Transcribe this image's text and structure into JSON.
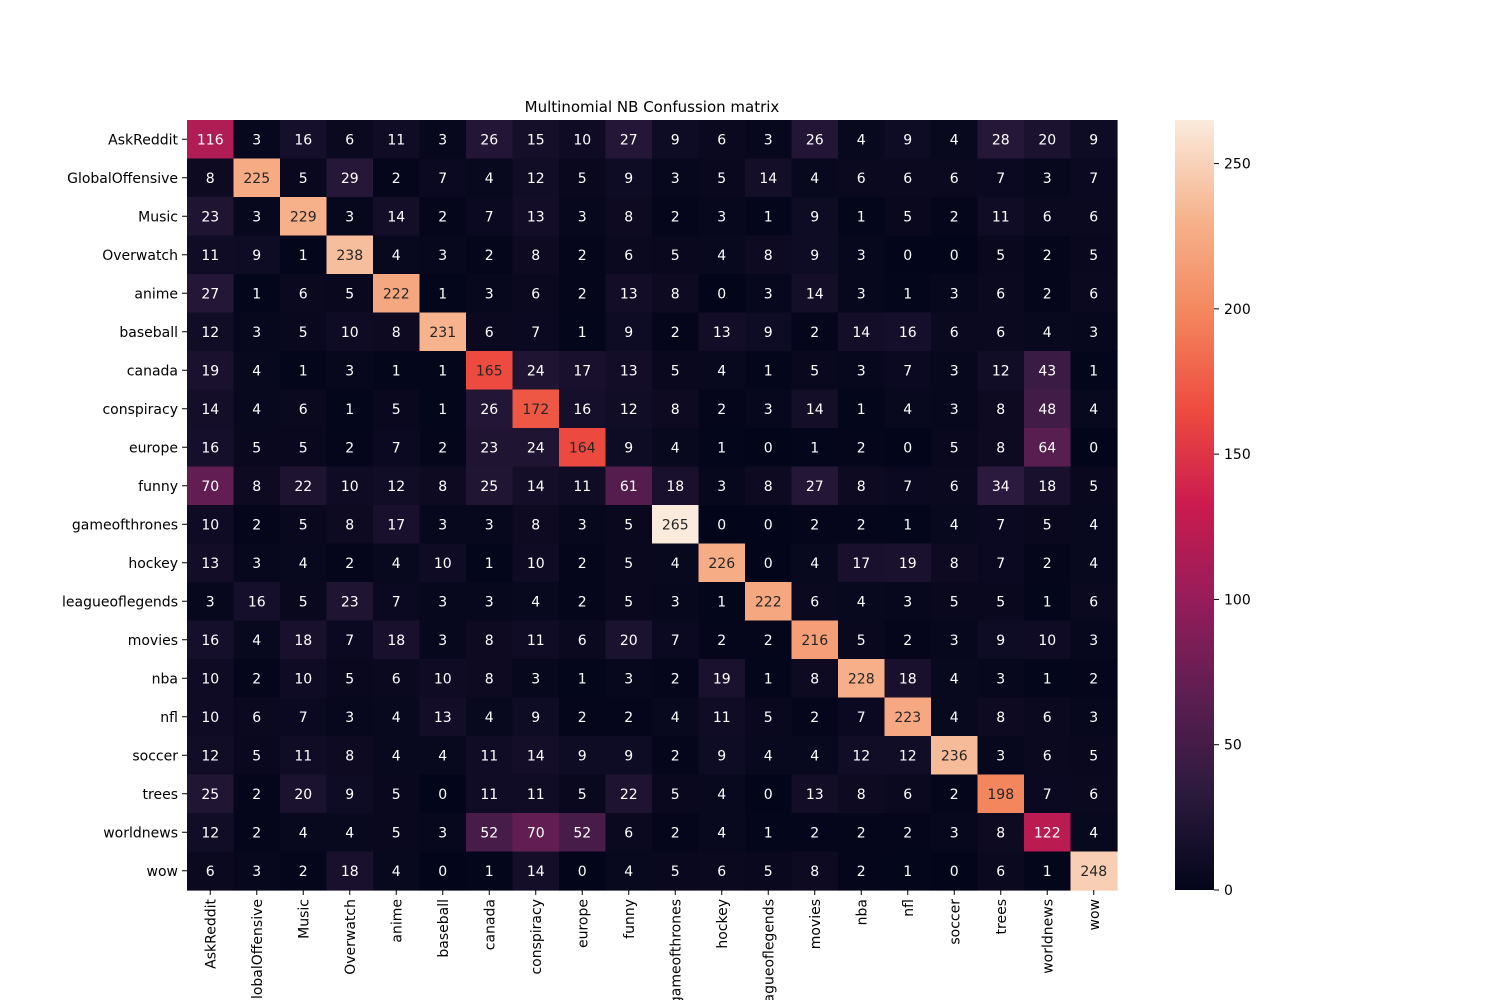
{
  "chart_data": {
    "type": "heatmap",
    "title": "Multinomial NB Confussion matrix",
    "xlabel": "",
    "ylabel": "",
    "row_labels": [
      "AskReddit",
      "GlobalOffensive",
      "Music",
      "Overwatch",
      "anime",
      "baseball",
      "canada",
      "conspiracy",
      "europe",
      "funny",
      "gameofthrones",
      "hockey",
      "leagueoflegends",
      "movies",
      "nba",
      "nfl",
      "soccer",
      "trees",
      "worldnews",
      "wow"
    ],
    "col_labels": [
      "AskReddit",
      "GlobalOffensive",
      "Music",
      "Overwatch",
      "anime",
      "baseball",
      "canada",
      "conspiracy",
      "europe",
      "funny",
      "gameofthrones",
      "hockey",
      "leagueoflegends",
      "movies",
      "nba",
      "nfl",
      "soccer",
      "trees",
      "worldnews",
      "wow"
    ],
    "values": [
      [
        116,
        3,
        16,
        6,
        11,
        3,
        26,
        15,
        10,
        27,
        9,
        6,
        3,
        26,
        4,
        9,
        4,
        28,
        20,
        9
      ],
      [
        8,
        225,
        5,
        29,
        2,
        7,
        4,
        12,
        5,
        9,
        3,
        5,
        14,
        4,
        6,
        6,
        6,
        7,
        3,
        7
      ],
      [
        23,
        3,
        229,
        3,
        14,
        2,
        7,
        13,
        3,
        8,
        2,
        3,
        1,
        9,
        1,
        5,
        2,
        11,
        6,
        6
      ],
      [
        11,
        9,
        1,
        238,
        4,
        3,
        2,
        8,
        2,
        6,
        5,
        4,
        8,
        9,
        3,
        0,
        0,
        5,
        2,
        5
      ],
      [
        27,
        1,
        6,
        5,
        222,
        1,
        3,
        6,
        2,
        13,
        8,
        0,
        3,
        14,
        3,
        1,
        3,
        6,
        2,
        6
      ],
      [
        12,
        3,
        5,
        10,
        8,
        231,
        6,
        7,
        1,
        9,
        2,
        13,
        9,
        2,
        14,
        16,
        6,
        6,
        4,
        3
      ],
      [
        19,
        4,
        1,
        3,
        1,
        1,
        165,
        24,
        17,
        13,
        5,
        4,
        1,
        5,
        3,
        7,
        3,
        12,
        43,
        1
      ],
      [
        14,
        4,
        6,
        1,
        5,
        1,
        26,
        172,
        16,
        12,
        8,
        2,
        3,
        14,
        1,
        4,
        3,
        8,
        48,
        4
      ],
      [
        16,
        5,
        5,
        2,
        7,
        2,
        23,
        24,
        164,
        9,
        4,
        1,
        0,
        1,
        2,
        0,
        5,
        8,
        64,
        0
      ],
      [
        70,
        8,
        22,
        10,
        12,
        8,
        25,
        14,
        11,
        61,
        18,
        3,
        8,
        27,
        8,
        7,
        6,
        34,
        18,
        5
      ],
      [
        10,
        2,
        5,
        8,
        17,
        3,
        3,
        8,
        3,
        5,
        265,
        0,
        0,
        2,
        2,
        1,
        4,
        7,
        5,
        4
      ],
      [
        13,
        3,
        4,
        2,
        4,
        10,
        1,
        10,
        2,
        5,
        4,
        226,
        0,
        4,
        17,
        19,
        8,
        7,
        2,
        4
      ],
      [
        3,
        16,
        5,
        23,
        7,
        3,
        3,
        4,
        2,
        5,
        3,
        1,
        222,
        6,
        4,
        3,
        5,
        5,
        1,
        6
      ],
      [
        16,
        4,
        18,
        7,
        18,
        3,
        8,
        11,
        6,
        20,
        7,
        2,
        2,
        216,
        5,
        2,
        3,
        9,
        10,
        3
      ],
      [
        10,
        2,
        10,
        5,
        6,
        10,
        8,
        3,
        1,
        3,
        2,
        19,
        1,
        8,
        228,
        18,
        4,
        3,
        1,
        2
      ],
      [
        10,
        6,
        7,
        3,
        4,
        13,
        4,
        9,
        2,
        2,
        4,
        11,
        5,
        2,
        7,
        223,
        4,
        8,
        6,
        3
      ],
      [
        12,
        5,
        11,
        8,
        4,
        4,
        11,
        14,
        9,
        9,
        2,
        9,
        4,
        4,
        12,
        12,
        236,
        3,
        6,
        5
      ],
      [
        25,
        2,
        20,
        9,
        5,
        0,
        11,
        11,
        5,
        22,
        5,
        4,
        0,
        13,
        8,
        6,
        2,
        198,
        7,
        6
      ],
      [
        12,
        2,
        4,
        4,
        5,
        3,
        52,
        70,
        52,
        6,
        2,
        4,
        1,
        2,
        2,
        2,
        3,
        8,
        122,
        4
      ],
      [
        6,
        3,
        2,
        18,
        4,
        0,
        1,
        14,
        0,
        4,
        5,
        6,
        5,
        8,
        2,
        1,
        0,
        6,
        1,
        248
      ]
    ],
    "vmin": 0,
    "vmax": 265,
    "colorbar_ticks": [
      0,
      50,
      100,
      150,
      200,
      250
    ],
    "colormap": "rocket",
    "colors": [
      "#03051a",
      "#2b1a3d",
      "#5c1e51",
      "#951d5a",
      "#cb1b4f",
      "#ee4c3f",
      "#f4875e",
      "#f6b48e",
      "#faebdd"
    ]
  }
}
